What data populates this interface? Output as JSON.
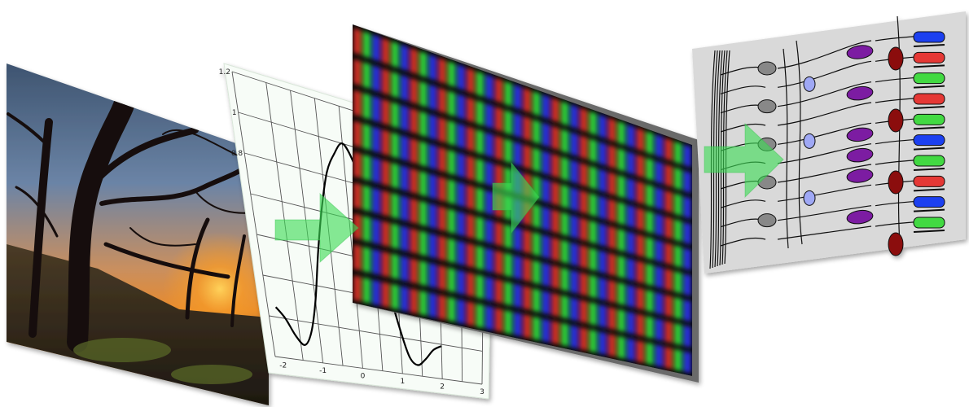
{
  "diagram": {
    "panels": [
      {
        "name": "landscape-photo-panel",
        "kind": "photograph"
      },
      {
        "name": "psf-plot-panel",
        "kind": "line-plot"
      },
      {
        "name": "rgb-subpixel-display-panel",
        "kind": "display-closeup"
      },
      {
        "name": "retina-cells-panel",
        "kind": "cell-illustration"
      }
    ],
    "arrows": {
      "color": "#3ddc55",
      "count": 3
    }
  },
  "psf_plot": {
    "y_ticks": [
      "1.2",
      "1",
      "0.8"
    ],
    "x_ticks": [
      "-2",
      "-1",
      "0",
      "1",
      "2",
      "3"
    ]
  },
  "chart_data": {
    "type": "line",
    "title": "",
    "xlabel": "",
    "ylabel": "",
    "xlim": [
      -2.2,
      3
    ],
    "ylim": [
      -0.2,
      1.2
    ],
    "x": [
      -2.0,
      -1.8,
      -1.6,
      -1.4,
      -1.2,
      -1.0,
      -0.8,
      -0.6,
      -0.4,
      -0.2,
      0.0,
      0.2,
      0.4,
      0.6,
      0.8,
      1.0,
      1.2,
      1.4,
      1.6,
      1.8,
      2.0
    ],
    "series": [
      {
        "values": [
          0.05,
          0.0,
          -0.08,
          -0.12,
          -0.05,
          0.12,
          0.38,
          0.62,
          0.82,
          0.93,
          1.0,
          0.92,
          0.75,
          0.5,
          0.25,
          0.05,
          -0.1,
          -0.14,
          -0.1,
          -0.04,
          -0.01
        ]
      }
    ],
    "grid": true
  },
  "retina": {
    "row_count": 10,
    "colors": {
      "rod": "#7b1fa2",
      "cone_red": "#e53935",
      "cone_green": "#43d943",
      "cone_blue": "#1e3ff0",
      "bipolar": "#9fa8f5",
      "ganglion": "#888888",
      "dark_red": "#8b0e0e"
    }
  }
}
